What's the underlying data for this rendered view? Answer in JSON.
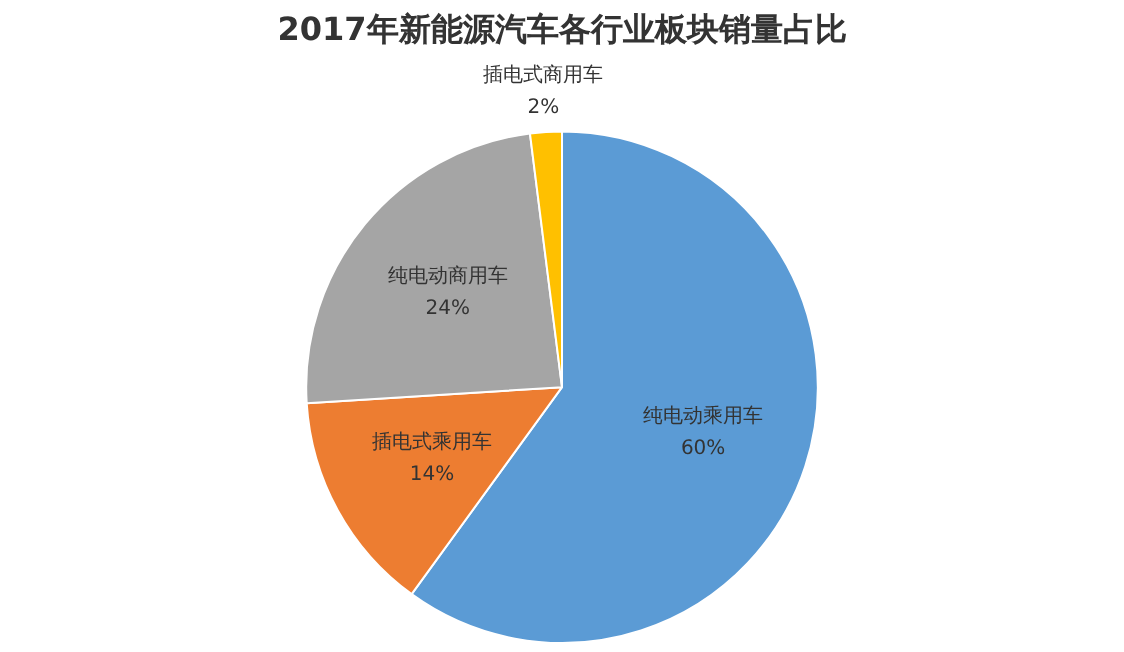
{
  "chart_data": {
    "type": "pie",
    "title": "2017年新能源汽车各行业板块销量占比",
    "categories": [
      "纯电动乘用车",
      "插电式乘用车",
      "纯电动商用车",
      "插电式商用车"
    ],
    "values": [
      60,
      14,
      24,
      2
    ],
    "colors": [
      "#5b9bd5",
      "#ed7d31",
      "#a5a5a5",
      "#ffc000"
    ],
    "value_labels": [
      "60%",
      "14%",
      "24%",
      "2%"
    ],
    "legend": false
  }
}
